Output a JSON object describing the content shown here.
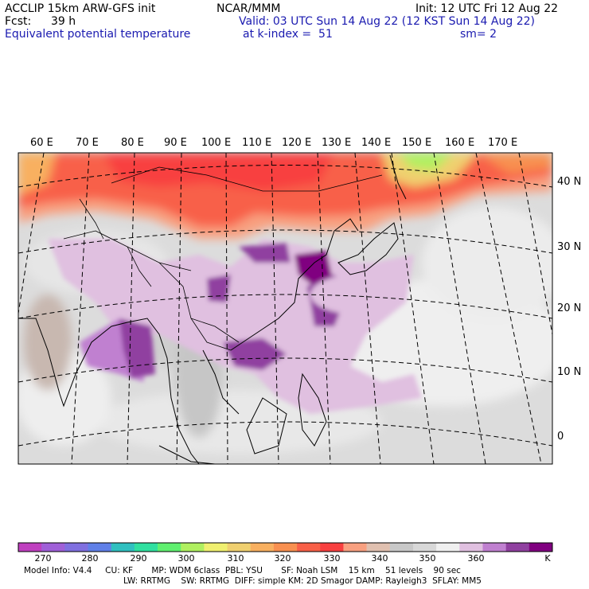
{
  "header": {
    "model": "ACCLIP 15km ARW-GFS init",
    "center": "NCAR/MMM",
    "init": "Init: 12 UTC Fri 12 Aug 22",
    "fcst_label": "Fcst:",
    "fcst_value": "39 h",
    "valid": "Valid: 03 UTC Sun 14 Aug 22 (12 KST Sun 14 Aug 22)",
    "field": "Equivalent potential temperature",
    "level": "at k-index =  51",
    "smooth": "sm= 2"
  },
  "map": {
    "lon_labels": [
      "60 E",
      "70 E",
      "80 E",
      "90 E",
      "100 E",
      "110 E",
      "120 E",
      "130 E",
      "140 E",
      "150 E",
      "160 E",
      "170 E"
    ],
    "lat_labels": [
      "40 N",
      "30 N",
      "20 N",
      "10 N",
      "0"
    ]
  },
  "colorbar": {
    "unit": "K",
    "ticks": [
      "270",
      "280",
      "290",
      "300",
      "310",
      "320",
      "330",
      "340",
      "350",
      "360"
    ],
    "colors": [
      "#c040c0",
      "#a060d8",
      "#8070e0",
      "#6080e8",
      "#30c0c0",
      "#30e0a0",
      "#60f070",
      "#b0f060",
      "#f0f070",
      "#f0d070",
      "#f8b060",
      "#f89050",
      "#f86048",
      "#f84040",
      "#f8a080",
      "#e0c0b0",
      "#c8c8c8",
      "#d8d8d8",
      "#f0f0f0",
      "#e0c0e0",
      "#c080d0",
      "#9040a0",
      "#800080"
    ]
  },
  "footer": {
    "line1": "Model Info: V4.4     CU: KF       MP: WDM 6class  PBL: YSU       SF: Noah LSM    15 km    51 levels    90 sec",
    "line2": "LW: RRTMG    SW: RRTMG  DIFF: simple KM: 2D Smagor DAMP: Rayleigh3  SFLAY: MM5"
  }
}
